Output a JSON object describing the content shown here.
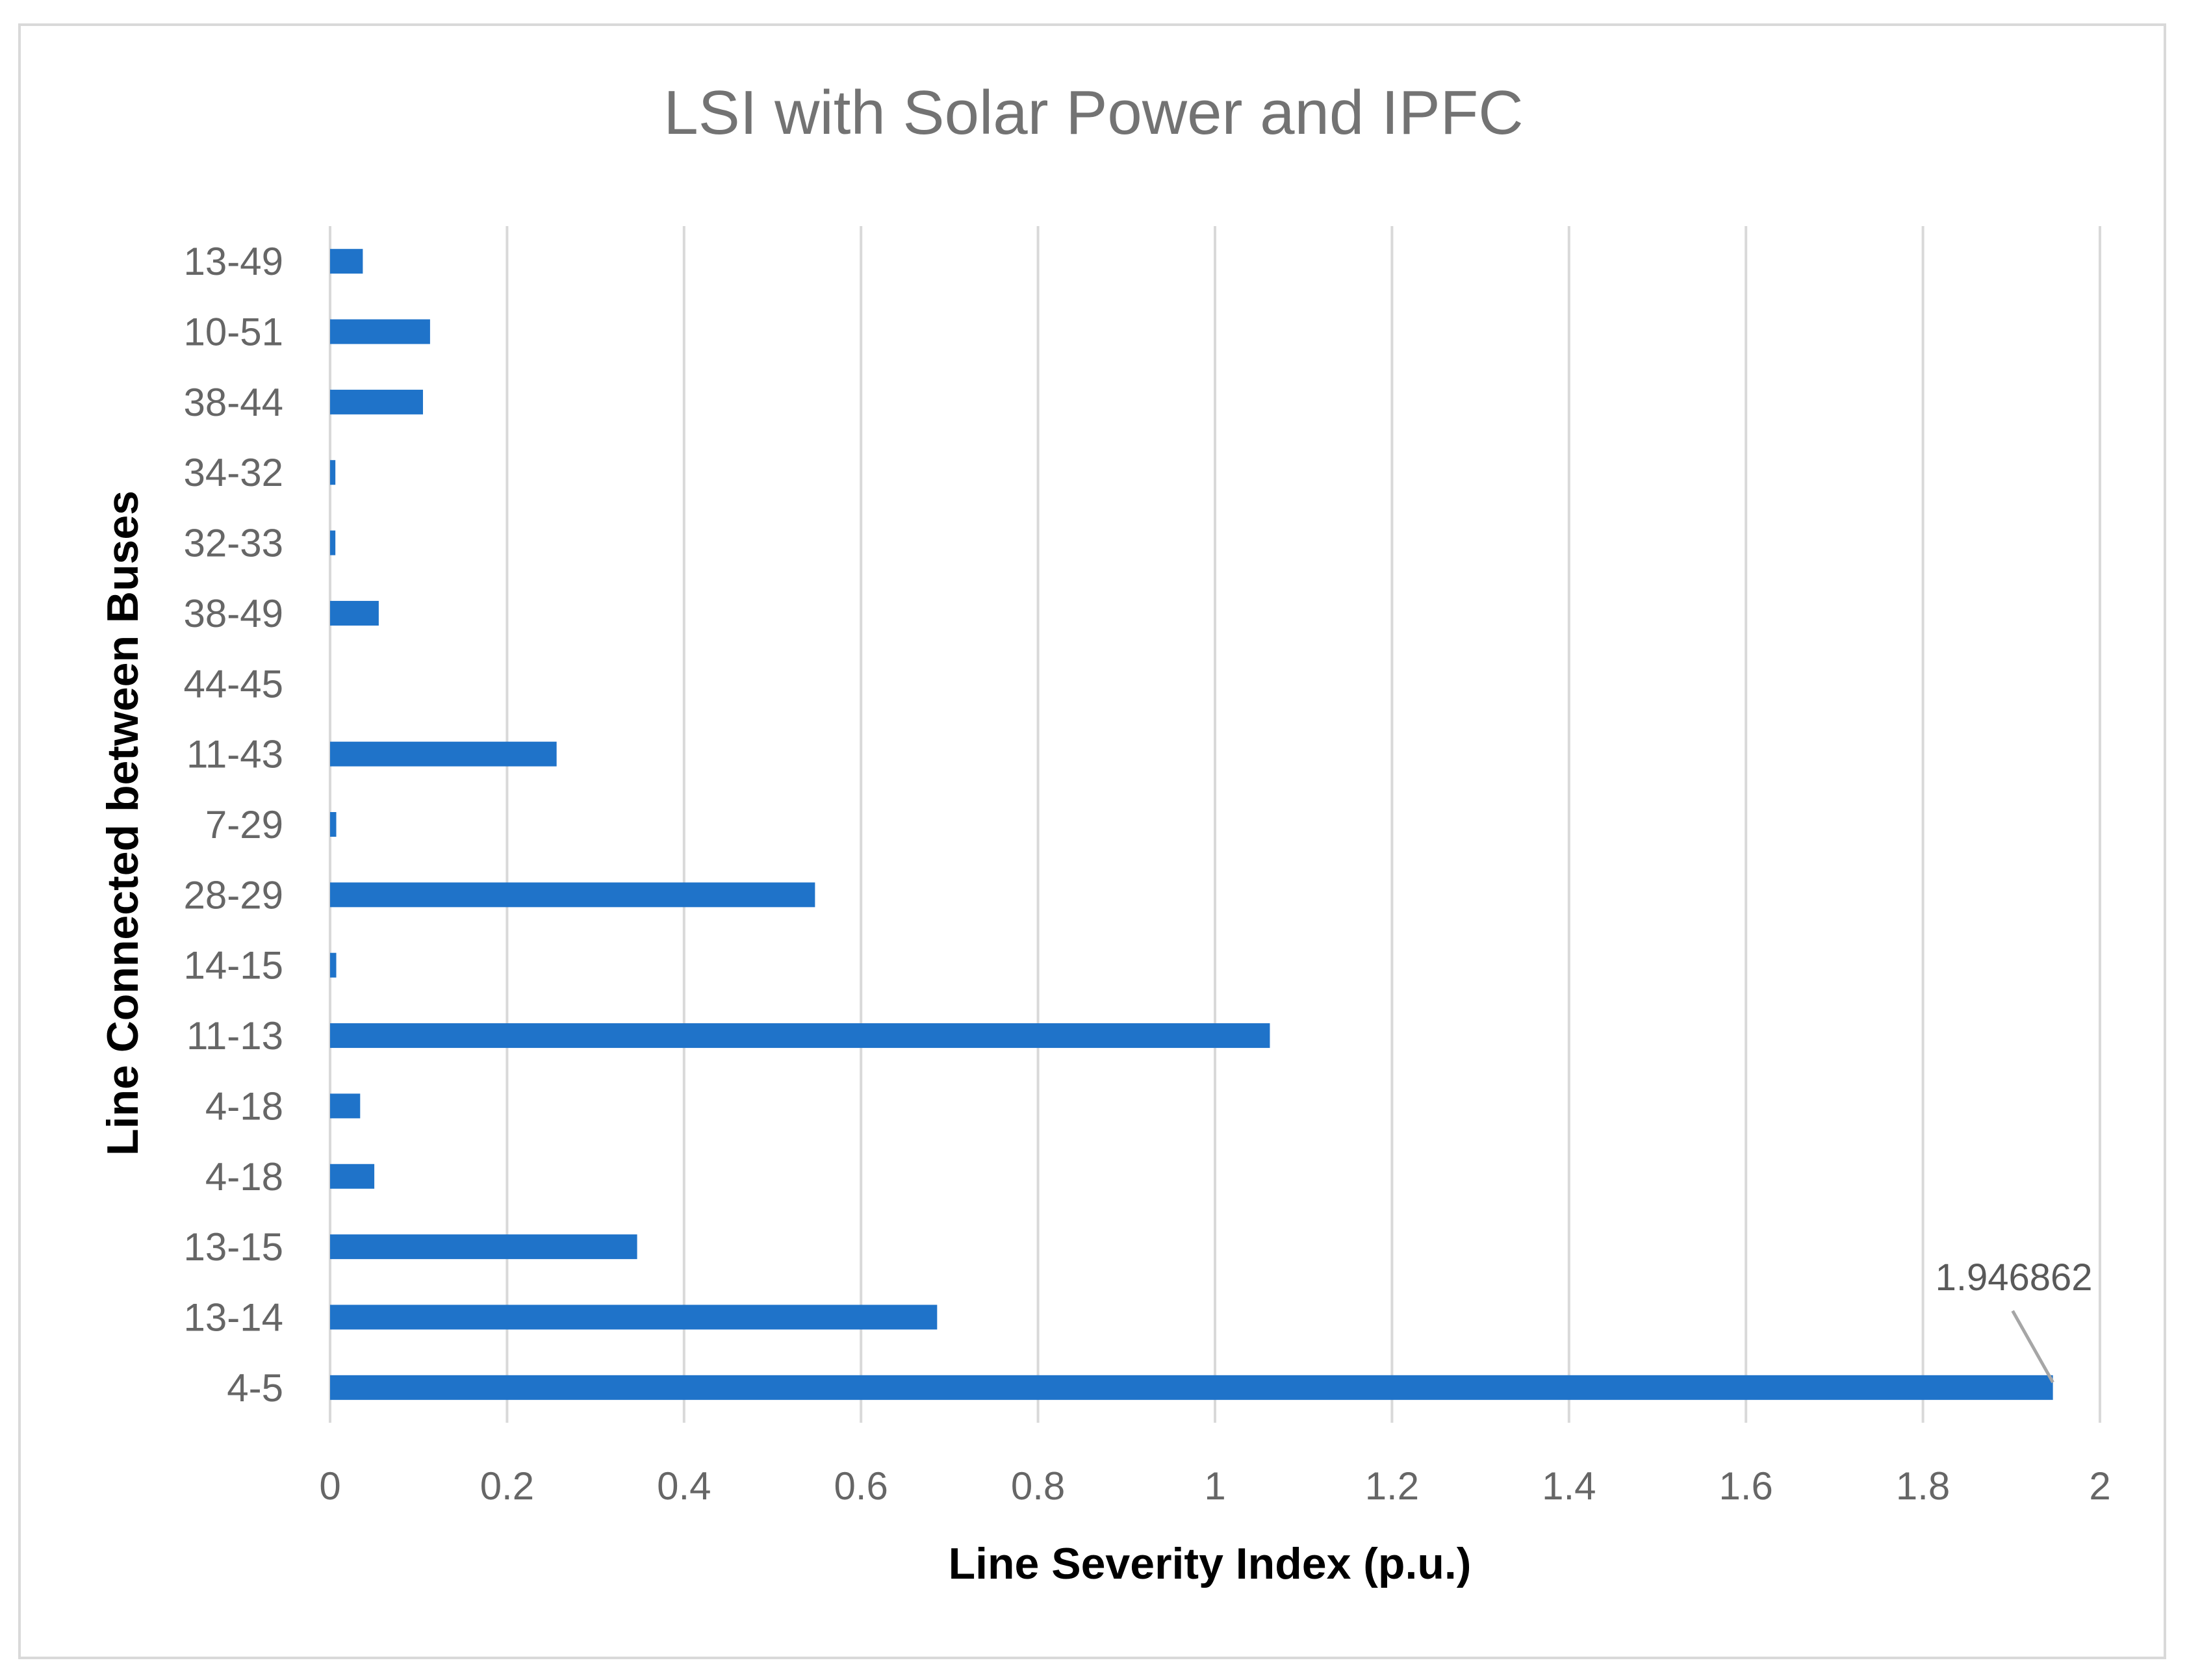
{
  "chart_data": {
    "type": "bar",
    "orientation": "horizontal",
    "title": "LSI with Solar Power and IPFC",
    "xlabel": "Line Severity Index (p.u.)",
    "ylabel": "Line Connected between Buses",
    "xlim": [
      0,
      2
    ],
    "xticks": [
      "0",
      "0.2",
      "0.4",
      "0.6",
      "0.8",
      "1",
      "1.2",
      "1.4",
      "1.6",
      "1.8",
      "2"
    ],
    "grid": "vertical",
    "legend": "none",
    "color": "#1f73c9",
    "categories": [
      "4-5",
      "13-14",
      "13-15",
      "4-18",
      "4-18",
      "11-13",
      "14-15",
      "28-29",
      "7-29",
      "11-43",
      "44-45",
      "38-49",
      "32-33",
      "34-32",
      "38-44",
      "10-51",
      "13-49"
    ],
    "values": [
      1.946862,
      0.686,
      0.347,
      0.05,
      0.034,
      1.062,
      0.007,
      0.548,
      0.007,
      0.256,
      0.0,
      0.055,
      0.006,
      0.006,
      0.105,
      0.113,
      0.037
    ],
    "annotation": {
      "category": "4-5",
      "text": "1.946862"
    }
  }
}
